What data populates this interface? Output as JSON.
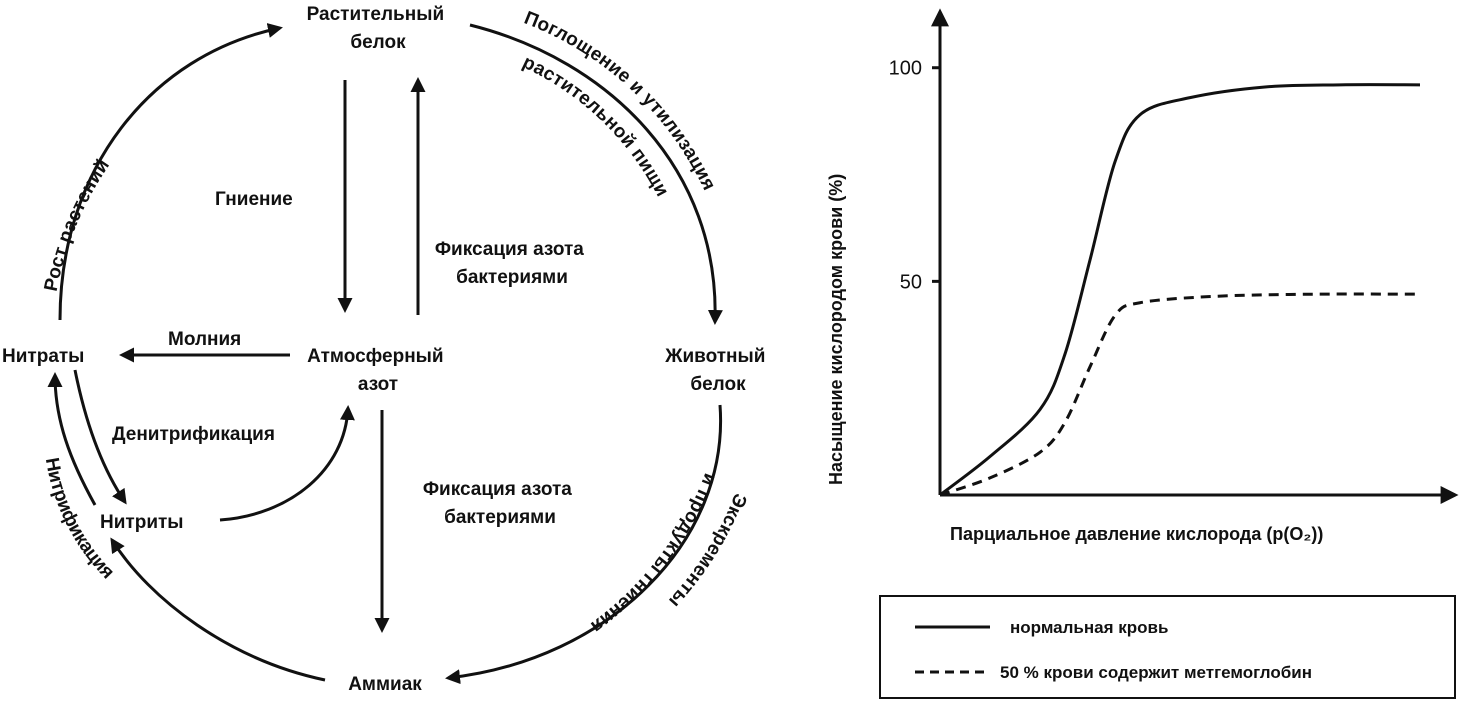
{
  "cycle": {
    "nodes": {
      "plant_protein": [
        "Растительный",
        "белок"
      ],
      "animal_protein": [
        "Животный",
        "белок"
      ],
      "atmospheric_nitrogen": [
        "Атмосферный",
        "азот"
      ],
      "nitrates": "Нитраты",
      "nitrites": "Нитриты",
      "ammonia": "Аммиак"
    },
    "edges": {
      "plant_growth": "Рост растений",
      "uptake": [
        "Поглощение и утилизация",
        "растительной пищи"
      ],
      "excrement": [
        "Экскременты",
        "и продукты гниения"
      ],
      "nitrification": "Нитрификация",
      "rotting": "Гниение",
      "fixation_top": [
        "Фиксация азота",
        "бактериями"
      ],
      "lightning": "Молния",
      "denitrification": "Денитрификация",
      "fixation_bottom": [
        "Фиксация азота",
        "бактериями"
      ]
    }
  },
  "chart_data": {
    "type": "line",
    "ylabel": "Насыщение кислородом крови (%)",
    "xlabel": "Парциальное давление кислорода (p(O₂))",
    "yticks": [
      100,
      50
    ],
    "ylim": [
      0,
      110
    ],
    "xlim": [
      0,
      100
    ],
    "grid": false,
    "legend_position": "bottom",
    "series": [
      {
        "name": "нормальная кровь",
        "style": "solid",
        "points": [
          [
            0,
            0
          ],
          [
            10,
            9
          ],
          [
            20,
            20
          ],
          [
            25,
            33
          ],
          [
            30,
            55
          ],
          [
            35,
            78
          ],
          [
            40,
            89
          ],
          [
            50,
            93
          ],
          [
            65,
            95.5
          ],
          [
            80,
            96
          ],
          [
            96,
            96
          ]
        ]
      },
      {
        "name": "50 % крови содержит метгемоглобин",
        "style": "dashed",
        "points": [
          [
            0,
            0
          ],
          [
            10,
            4
          ],
          [
            20,
            10
          ],
          [
            25,
            17
          ],
          [
            30,
            30
          ],
          [
            35,
            42
          ],
          [
            40,
            45
          ],
          [
            55,
            46.5
          ],
          [
            75,
            47
          ],
          [
            96,
            47
          ]
        ]
      }
    ]
  }
}
